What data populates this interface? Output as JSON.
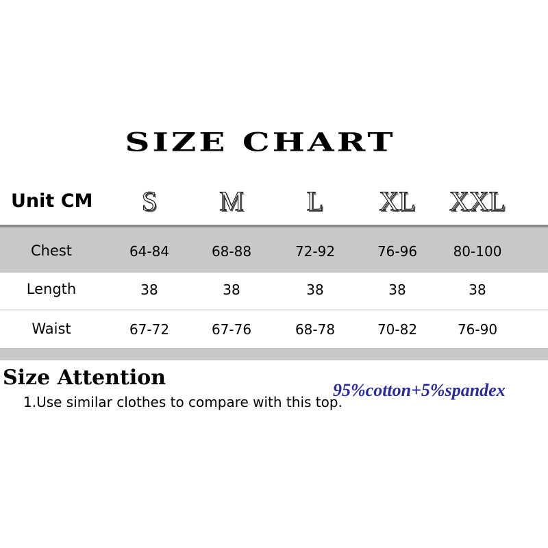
{
  "title": "SIZE CHART",
  "table": {
    "unit": "Unit CM",
    "sizes": [
      "S",
      "M",
      "L",
      "XL",
      "XXL"
    ],
    "rows": [
      {
        "label": "Chest",
        "cells": [
          "64-84",
          "68-88",
          "72-92",
          "76-96",
          "80-100"
        ]
      },
      {
        "label": "Length",
        "cells": [
          "38",
          "38",
          "38",
          "38",
          "38"
        ]
      },
      {
        "label": "Waist",
        "cells": [
          "67-72",
          "67-76",
          "68-78",
          "70-82",
          "76-90"
        ]
      }
    ]
  },
  "attention": {
    "heading": "Size Attention",
    "note": "1.Use similar clothes to compare with this top."
  },
  "fabric": "95%cotton+5%spandex"
}
